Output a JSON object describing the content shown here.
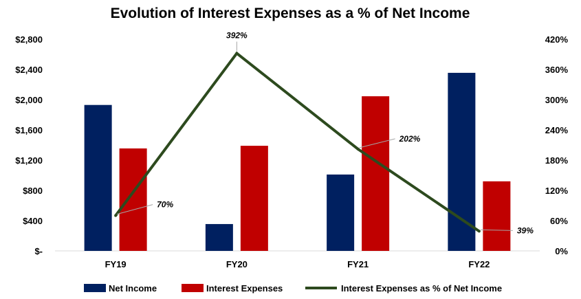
{
  "chart_data": {
    "type": "bar",
    "title": "Evolution of Interest Expenses as a % of Net Income",
    "categories": [
      "FY19",
      "FY20",
      "FY21",
      "FY22"
    ],
    "y_left": {
      "ticks": [
        "$-",
        "$400",
        "$800",
        "$1,200",
        "$1,600",
        "$2,000",
        "$2,400",
        "$2,800"
      ],
      "ylim": [
        0,
        2800
      ]
    },
    "y_right": {
      "ticks": [
        "0%",
        "60%",
        "120%",
        "180%",
        "240%",
        "300%",
        "360%",
        "420%"
      ],
      "ylim": [
        0,
        420
      ]
    },
    "series": [
      {
        "name": "Net Income",
        "type": "bar",
        "axis": "left",
        "color": "#002060",
        "values": [
          1930,
          355,
          1010,
          2355
        ]
      },
      {
        "name": "Interest Expenses",
        "type": "bar",
        "axis": "left",
        "color": "#C00000",
        "values": [
          1355,
          1390,
          2045,
          920
        ]
      },
      {
        "name": "Interest Expenses as % of Net Income",
        "type": "line",
        "axis": "right",
        "color": "#2D4A1E",
        "values": [
          70,
          392,
          202,
          39
        ],
        "labels": [
          "70%",
          "392%",
          "202%",
          "39%"
        ]
      }
    ],
    "grid": false,
    "legend": "bottom"
  }
}
